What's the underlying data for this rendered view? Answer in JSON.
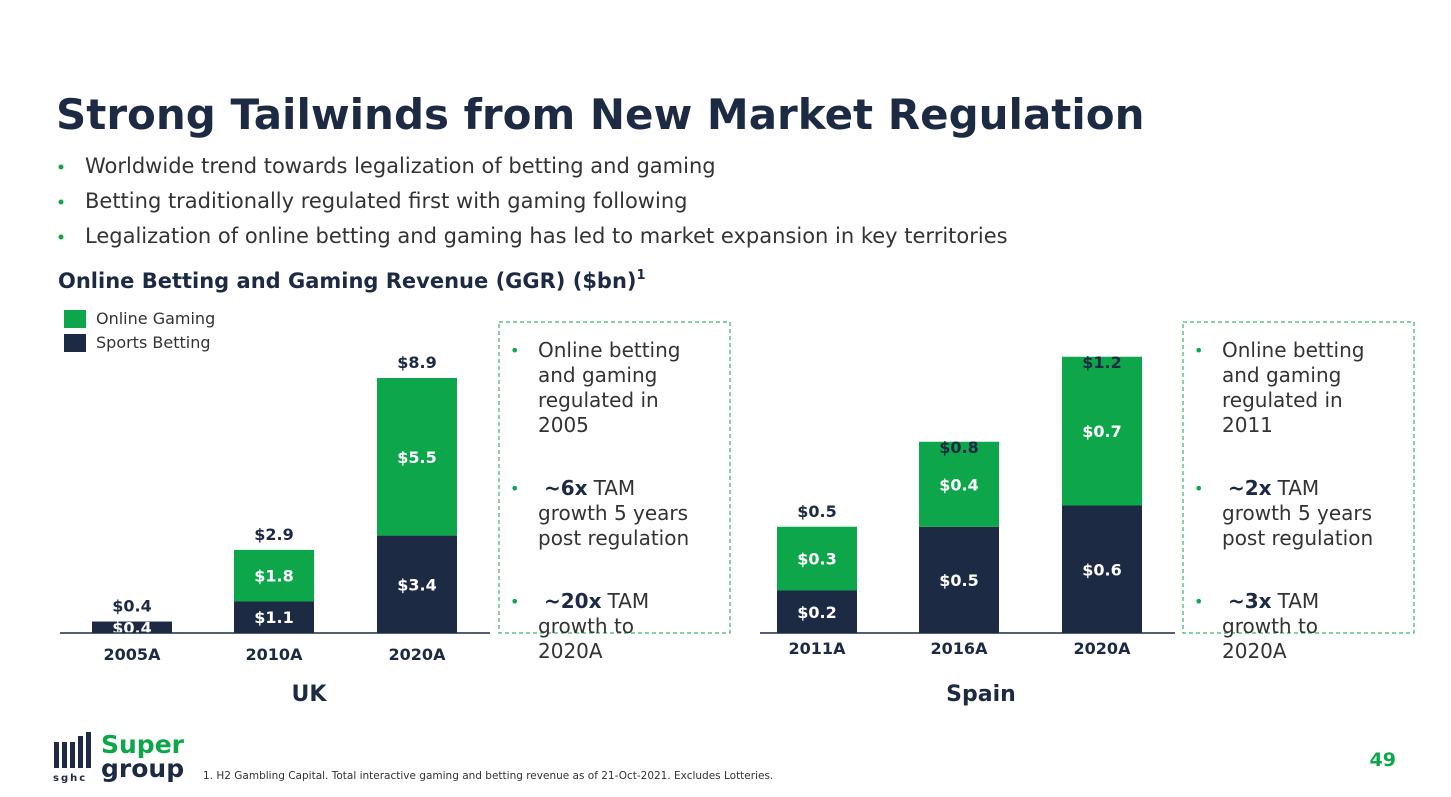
{
  "title": "Strong Tailwinds from New Market Regulation",
  "bullets": [
    "Worldwide trend towards legalization of betting and gaming",
    "Betting traditionally regulated first with gaming following",
    "Legalization of online betting and gaming has led to market expansion in key territories"
  ],
  "chart_heading": "Online Betting and Gaming Revenue (GGR) ($bn)",
  "chart_heading_note": "1",
  "chart_data": [
    {
      "type": "bar",
      "stacked": true,
      "title": "UK",
      "categories": [
        "2005A",
        "2010A",
        "2020A"
      ],
      "series": [
        {
          "name": "Sports Betting",
          "color": "#1d2a44",
          "values": [
            0.4,
            1.1,
            3.4
          ],
          "value_labels": [
            "$0.4",
            "$1.1",
            "$3.4"
          ]
        },
        {
          "name": "Online Gaming",
          "color": "#0ea64b",
          "values": [
            0,
            1.8,
            5.5
          ],
          "value_labels": [
            null,
            "$1.8",
            "$5.5"
          ]
        }
      ],
      "totals": [
        0.4,
        2.9,
        8.9
      ],
      "total_labels": [
        "$0.4",
        "$2.9",
        "$8.9"
      ]
    },
    {
      "type": "bar",
      "stacked": true,
      "title": "Spain",
      "categories": [
        "2011A",
        "2016A",
        "2020A"
      ],
      "series": [
        {
          "color": "#1d2a44",
          "values": [
            0.2,
            0.5,
            0.6
          ],
          "value_labels": [
            "$0.2",
            "$0.5",
            "$0.6"
          ]
        },
        {
          "color": "#0ea64b",
          "values": [
            0.3,
            0.4,
            0.7
          ],
          "value_labels": [
            "$0.3",
            "$0.4",
            "$0.7"
          ]
        }
      ],
      "totals": [
        0.5,
        0.8,
        1.2
      ],
      "total_labels": [
        "$0.5",
        "$0.8",
        "$1.2"
      ]
    }
  ],
  "callouts": [
    [
      {
        "text": "Online betting and gaming regulated in 2005"
      },
      {
        "bold": "~6x",
        "text": "TAM growth 5 years post regulation"
      },
      {
        "bold": "~20x",
        "text": "TAM growth to 2020A"
      }
    ],
    [
      {
        "text": "Online betting and gaming regulated in 2011"
      },
      {
        "bold": "~2x",
        "text": "TAM growth 5 years post regulation"
      },
      {
        "bold": "~3x",
        "text": "TAM growth to 2020A"
      }
    ]
  ],
  "footnote": "1. H2 Gambling Capital. Total interactive gaming and betting revenue as of 21-Oct-2021. Excludes Lotteries.",
  "page_number": "49",
  "logo": {
    "line1": "Super",
    "line2": "group",
    "mark": "sghc"
  }
}
